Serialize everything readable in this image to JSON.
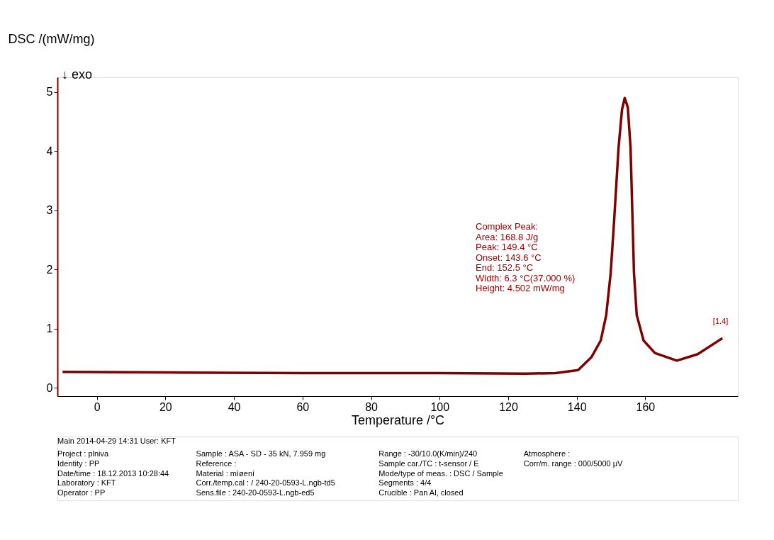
{
  "chart_data": {
    "type": "line",
    "xlabel": "Temperature /°C",
    "ylabel": "DSC /(mW/mg)",
    "series": [
      {
        "color": "#800000",
        "x": [
          -10,
          20,
          60,
          100,
          125.2,
          133.8,
          140.4,
          144.3,
          147.0,
          148.6,
          149.9,
          150.9,
          152.2,
          153.2,
          154.0,
          154.9,
          155.7,
          156.2,
          156.7,
          157.5,
          159.5,
          162.8,
          169.2,
          175.3,
          182.5
        ],
        "values": [
          0.27,
          0.26,
          0.25,
          0.25,
          0.24,
          0.25,
          0.3,
          0.52,
          0.8,
          1.23,
          1.94,
          2.82,
          4.06,
          4.7,
          4.9,
          4.74,
          4.06,
          3.0,
          1.94,
          1.23,
          0.8,
          0.59,
          0.46,
          0.57,
          0.84
        ]
      }
    ],
    "xlim": [
      -11.5,
      187
    ],
    "ylim": [
      -0.14,
      5.25
    ],
    "xticks": [
      0,
      20,
      40,
      60,
      80,
      100,
      120,
      140,
      160
    ],
    "yticks": [
      0,
      1,
      2,
      3,
      4,
      5
    ],
    "grid": false,
    "marker": "none",
    "line_style": "solid",
    "annotations": [
      "Complex Peak:",
      "Area:     168.8 J/g",
      "Peak:     149.4 °C",
      "Onset:    143.6 °C",
      "End:       152.5 °C",
      "Width:      6.3 °C(37.000 %)",
      "Height:     4.502 mW/mg",
      "↓  exo",
      {
        "text": "[1.4]",
        "x": 182.5,
        "y": 0.84
      },
      "Main   2014-04-29 14:31   User: KFT",
      "Project : plniva",
      "Identity : PP",
      "Date/time : 18.12.2013 10:28:44",
      "Laboratory : KFT",
      "Operator : PP",
      "Sample : ASA - SD - 35 kN, 7.959 mg",
      "Reference :",
      "Material : mìøení",
      "Corr./temp.cal : / 240-20-0593-L.ngb-td5",
      "Sens.file : 240-20-0593-L.ngb-ed5",
      "Range : -30/10.0(K/min)/240",
      "Sample car./TC : t-sensor / E",
      "Mode/type of meas. : DSC / Sample",
      "Segments : 4/4",
      "Crucible : Pan Al, closed",
      "Atmosphere :",
      "Corr/m. range : 000/5000 μV"
    ]
  }
}
